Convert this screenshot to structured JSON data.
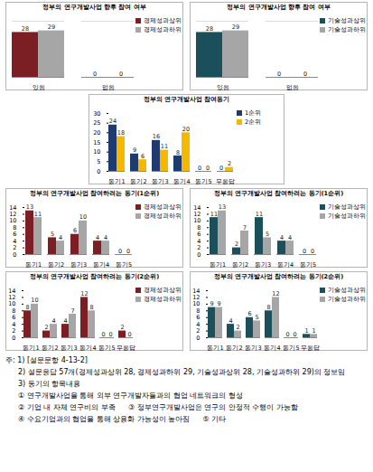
{
  "chart_data": [
    {
      "type": "bar",
      "title": "정부의 연구개발사업 향후 참여 여부",
      "categories": [
        "있음",
        "없음"
      ],
      "series": [
        {
          "name": "경제성과상위",
          "color": "#7b1f24",
          "values": [
            28,
            0
          ]
        },
        {
          "name": "경제성과하위",
          "color": "#a6a6a6",
          "values": [
            29,
            0
          ]
        }
      ],
      "ylim": [
        0,
        35
      ],
      "tick_labels": "x",
      "grid": false,
      "data_labels": true,
      "legend": "right"
    },
    {
      "type": "bar",
      "title": "정부의 연구개발사업 향후 참여 여부",
      "categories": [
        "있음",
        "없음"
      ],
      "series": [
        {
          "name": "기술성과상위",
          "color": "#1b4f5c",
          "values": [
            28,
            0
          ]
        },
        {
          "name": "기술성과하위",
          "color": "#a6a6a6",
          "values": [
            29,
            0
          ]
        }
      ],
      "ylim": [
        0,
        35
      ],
      "tick_labels": "x",
      "grid": false,
      "data_labels": true,
      "legend": "right"
    },
    {
      "type": "bar",
      "title": "정부의 연구개발사업 참여동기",
      "categories": [
        "동기1",
        "동기2",
        "동기3",
        "동기4",
        "동기5",
        "무응답"
      ],
      "series": [
        {
          "name": "1순위",
          "color": "#1f3a6e",
          "values": [
            24,
            9,
            16,
            8,
            0,
            0
          ]
        },
        {
          "name": "2순위",
          "color": "#f5b800",
          "values": [
            18,
            6,
            11,
            20,
            0,
            2
          ]
        }
      ],
      "ylim": [
        0,
        30
      ],
      "yticks": [
        0,
        5,
        10,
        15,
        20,
        25,
        30
      ],
      "grid": false,
      "data_labels": true,
      "legend": "right"
    },
    {
      "type": "bar",
      "title": "정부의 연구개발사업 참여하려는 동기(1순위)",
      "categories": [
        "동기1",
        "동기2",
        "동기3",
        "동기4",
        "동기5"
      ],
      "series": [
        {
          "name": "경제성과상위",
          "color": "#7b1f24",
          "values": [
            13,
            5,
            6,
            4,
            0
          ]
        },
        {
          "name": "경제성과하위",
          "color": "#a6a6a6",
          "values": [
            11,
            4,
            10,
            4,
            0
          ]
        }
      ],
      "ylim": [
        0,
        14
      ],
      "yticks": [
        0,
        2,
        4,
        6,
        8,
        10,
        12,
        14
      ],
      "grid": false,
      "data_labels": true,
      "legend": "right"
    },
    {
      "type": "bar",
      "title": "정부의 연구개발사업 참여하려는 동기(1순위)",
      "categories": [
        "동기1",
        "동기2",
        "동기3",
        "동기4",
        "동기5"
      ],
      "series": [
        {
          "name": "기술성과상위",
          "color": "#1b4f5c",
          "values": [
            11,
            2,
            11,
            4,
            0
          ]
        },
        {
          "name": "기술성과하위",
          "color": "#a6a6a6",
          "values": [
            13,
            7,
            5,
            4,
            0
          ]
        }
      ],
      "ylim": [
        0,
        14
      ],
      "yticks": [
        0,
        2,
        4,
        6,
        8,
        10,
        12,
        14
      ],
      "grid": false,
      "data_labels": true,
      "legend": "right"
    },
    {
      "type": "bar",
      "title": "정부의 연구개발사업 참여하려는 동기(2순위)",
      "categories": [
        "동기1",
        "동기2",
        "동기3",
        "동기4",
        "동기5",
        "무응답"
      ],
      "series": [
        {
          "name": "경제성과상위",
          "color": "#7b1f24",
          "values": [
            8,
            2,
            4,
            12,
            0,
            2
          ]
        },
        {
          "name": "경제성과하위",
          "color": "#a6a6a6",
          "values": [
            10,
            4,
            7,
            8,
            0,
            0
          ]
        }
      ],
      "ylim": [
        0,
        14
      ],
      "yticks": [
        0,
        2,
        4,
        6,
        8,
        10,
        12,
        14
      ],
      "grid": false,
      "data_labels": true,
      "legend": "right"
    },
    {
      "type": "bar",
      "title": "정부의 연구개발사업 참여하려는 동기(2순위)",
      "categories": [
        "동기1",
        "동기2",
        "동기3",
        "동기4",
        "동기5",
        "무응답"
      ],
      "series": [
        {
          "name": "기술성과상위",
          "color": "#1b4f5c",
          "values": [
            9,
            4,
            6,
            8,
            0,
            1
          ]
        },
        {
          "name": "기술성과하위",
          "color": "#a6a6a6",
          "values": [
            9,
            2,
            5,
            12,
            0,
            1
          ]
        }
      ],
      "ylim": [
        0,
        14
      ],
      "yticks": [
        0,
        2,
        4,
        6,
        8,
        10,
        12,
        14
      ],
      "grid": false,
      "data_labels": true,
      "legend": "right"
    }
  ],
  "notes": [
    [
      "주: 1) [설문문항 4-13-2]"
    ],
    [
      "2) 설문응답 57개(경제성과상위 28, 경제성과하위 29, 기술성과상위 28, 기술성과하위 29)의 정보임"
    ],
    [
      "3) 동기의 항목내용"
    ],
    [
      "① 연구개발사업을 통해 외부 연구개발자들과의 협업 네트워크의 형성"
    ],
    [
      "② 기업 내 자체 연구비의 부족",
      "③ 정부연구개발사업은 연구의 안정적 수행이 가능함"
    ],
    [
      "④ 수요기업과의 협업을 통해 상용화 가능성이 높아짐",
      "⑤ 기타"
    ]
  ]
}
